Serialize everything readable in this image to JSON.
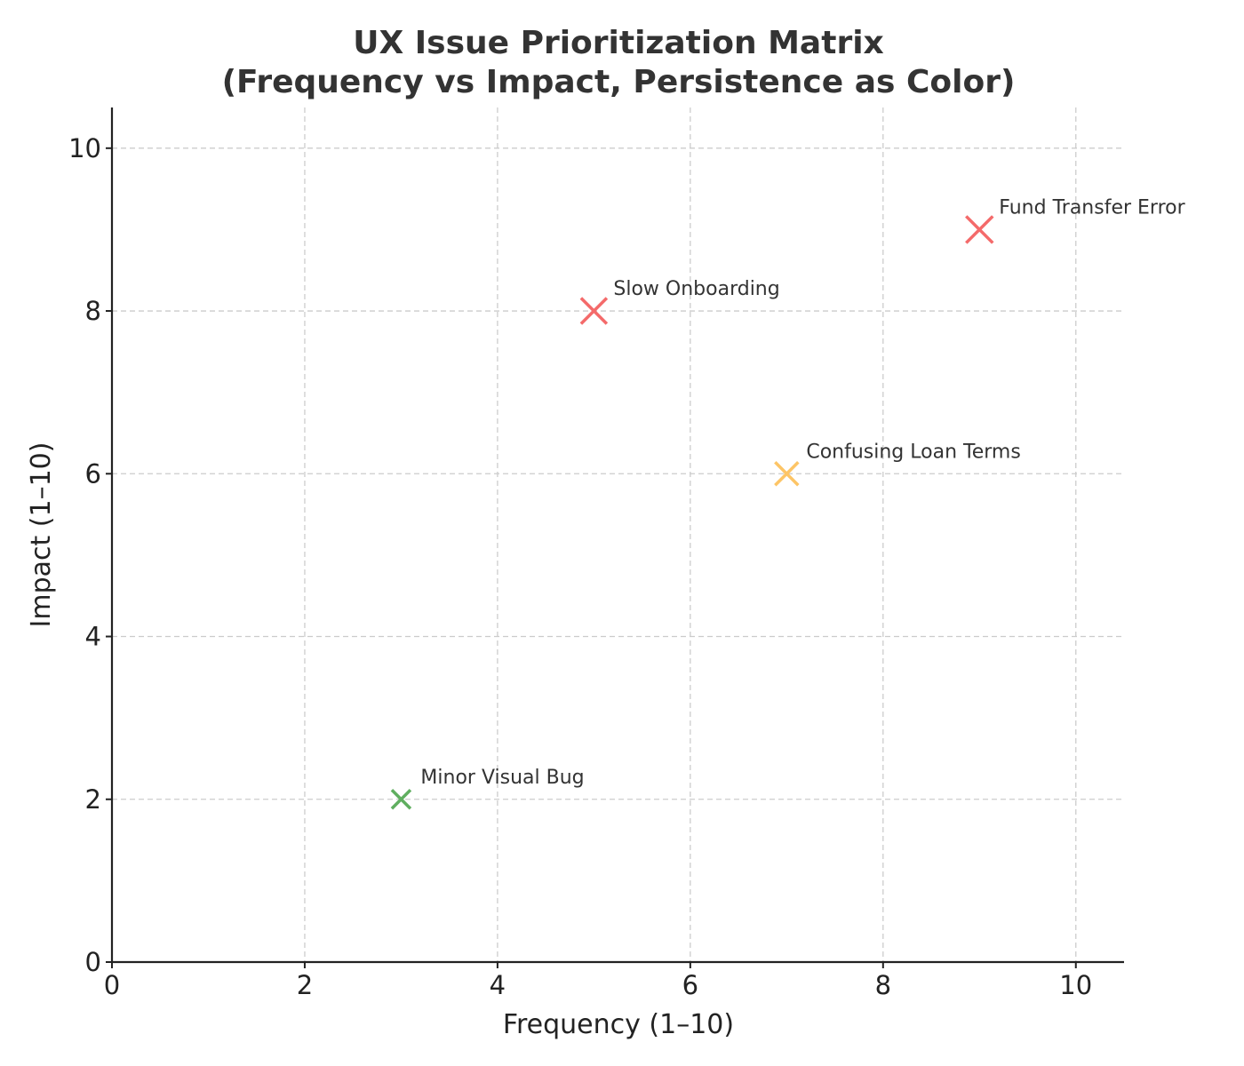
{
  "chart_data": {
    "type": "scatter",
    "title_lines": [
      "UX Issue Prioritization Matrix",
      "(Frequency vs Impact, Persistence as Color)"
    ],
    "xlabel": "Frequency (1–10)",
    "ylabel": "Impact (1–10)",
    "xlim": [
      0,
      10.5
    ],
    "ylim": [
      0,
      10.5
    ],
    "xticks": [
      0,
      2,
      4,
      6,
      8,
      10
    ],
    "yticks": [
      0,
      2,
      4,
      6,
      8,
      10
    ],
    "grid": true,
    "marker": "x",
    "points": [
      {
        "label": "Fund Transfer Error",
        "x": 9,
        "y": 9,
        "color": "#f46a6a"
      },
      {
        "label": "Slow Onboarding",
        "x": 5,
        "y": 8,
        "color": "#f46a6a"
      },
      {
        "label": "Confusing Loan Terms",
        "x": 7,
        "y": 6,
        "color": "#fdc566"
      },
      {
        "label": "Minor Visual Bug",
        "x": 3,
        "y": 2,
        "color": "#5fae5f"
      }
    ]
  }
}
